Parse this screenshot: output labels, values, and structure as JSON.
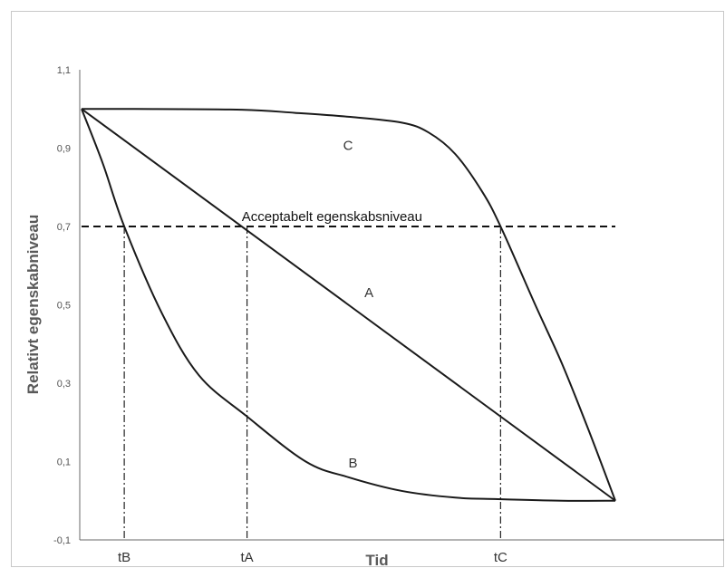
{
  "chart_data": {
    "type": "line",
    "ylabel": "Relativt egenskabniveau",
    "xlabel": "Tid",
    "ylim": [
      -0.1,
      1.1
    ],
    "y_ticks": [
      "1,1",
      "0,9",
      "0,7",
      "0,5",
      "0,3",
      "0,1",
      "-0,1"
    ],
    "x_range": [
      0,
      1
    ],
    "x_tick_labels": [
      {
        "label": "tB",
        "x": 0.08
      },
      {
        "label": "tA",
        "x": 0.31
      },
      {
        "label": "tC",
        "x": 0.785
      }
    ],
    "series": [
      {
        "name": "A",
        "points": [
          [
            0,
            1.0
          ],
          [
            1,
            0.0
          ]
        ]
      },
      {
        "name": "B",
        "points": [
          [
            0,
            1.0
          ],
          [
            0.04,
            0.86
          ],
          [
            0.08,
            0.7
          ],
          [
            0.15,
            0.48
          ],
          [
            0.22,
            0.32
          ],
          [
            0.31,
            0.215
          ],
          [
            0.42,
            0.1
          ],
          [
            0.5,
            0.06
          ],
          [
            0.6,
            0.025
          ],
          [
            0.7,
            0.008
          ],
          [
            0.78,
            0.004
          ],
          [
            0.9,
            0.0
          ],
          [
            1.0,
            0.0
          ]
        ]
      },
      {
        "name": "C",
        "points": [
          [
            0,
            1.0
          ],
          [
            0.1,
            1.0
          ],
          [
            0.3,
            0.998
          ],
          [
            0.4,
            0.99
          ],
          [
            0.5,
            0.98
          ],
          [
            0.6,
            0.965
          ],
          [
            0.65,
            0.94
          ],
          [
            0.7,
            0.885
          ],
          [
            0.75,
            0.79
          ],
          [
            0.785,
            0.7
          ],
          [
            0.85,
            0.5
          ],
          [
            0.9,
            0.35
          ],
          [
            0.95,
            0.18
          ],
          [
            1.0,
            0.0
          ]
        ]
      }
    ],
    "curve_labels": [
      {
        "name": "A",
        "x": 0.53,
        "y": 0.52
      },
      {
        "name": "B",
        "x": 0.5,
        "y": 0.085
      },
      {
        "name": "C",
        "x": 0.49,
        "y": 0.895
      }
    ],
    "threshold": {
      "y": 0.7,
      "label": "Acceptabelt egenskabsniveau",
      "label_x": 0.3
    },
    "grid": false,
    "legend": "none"
  }
}
